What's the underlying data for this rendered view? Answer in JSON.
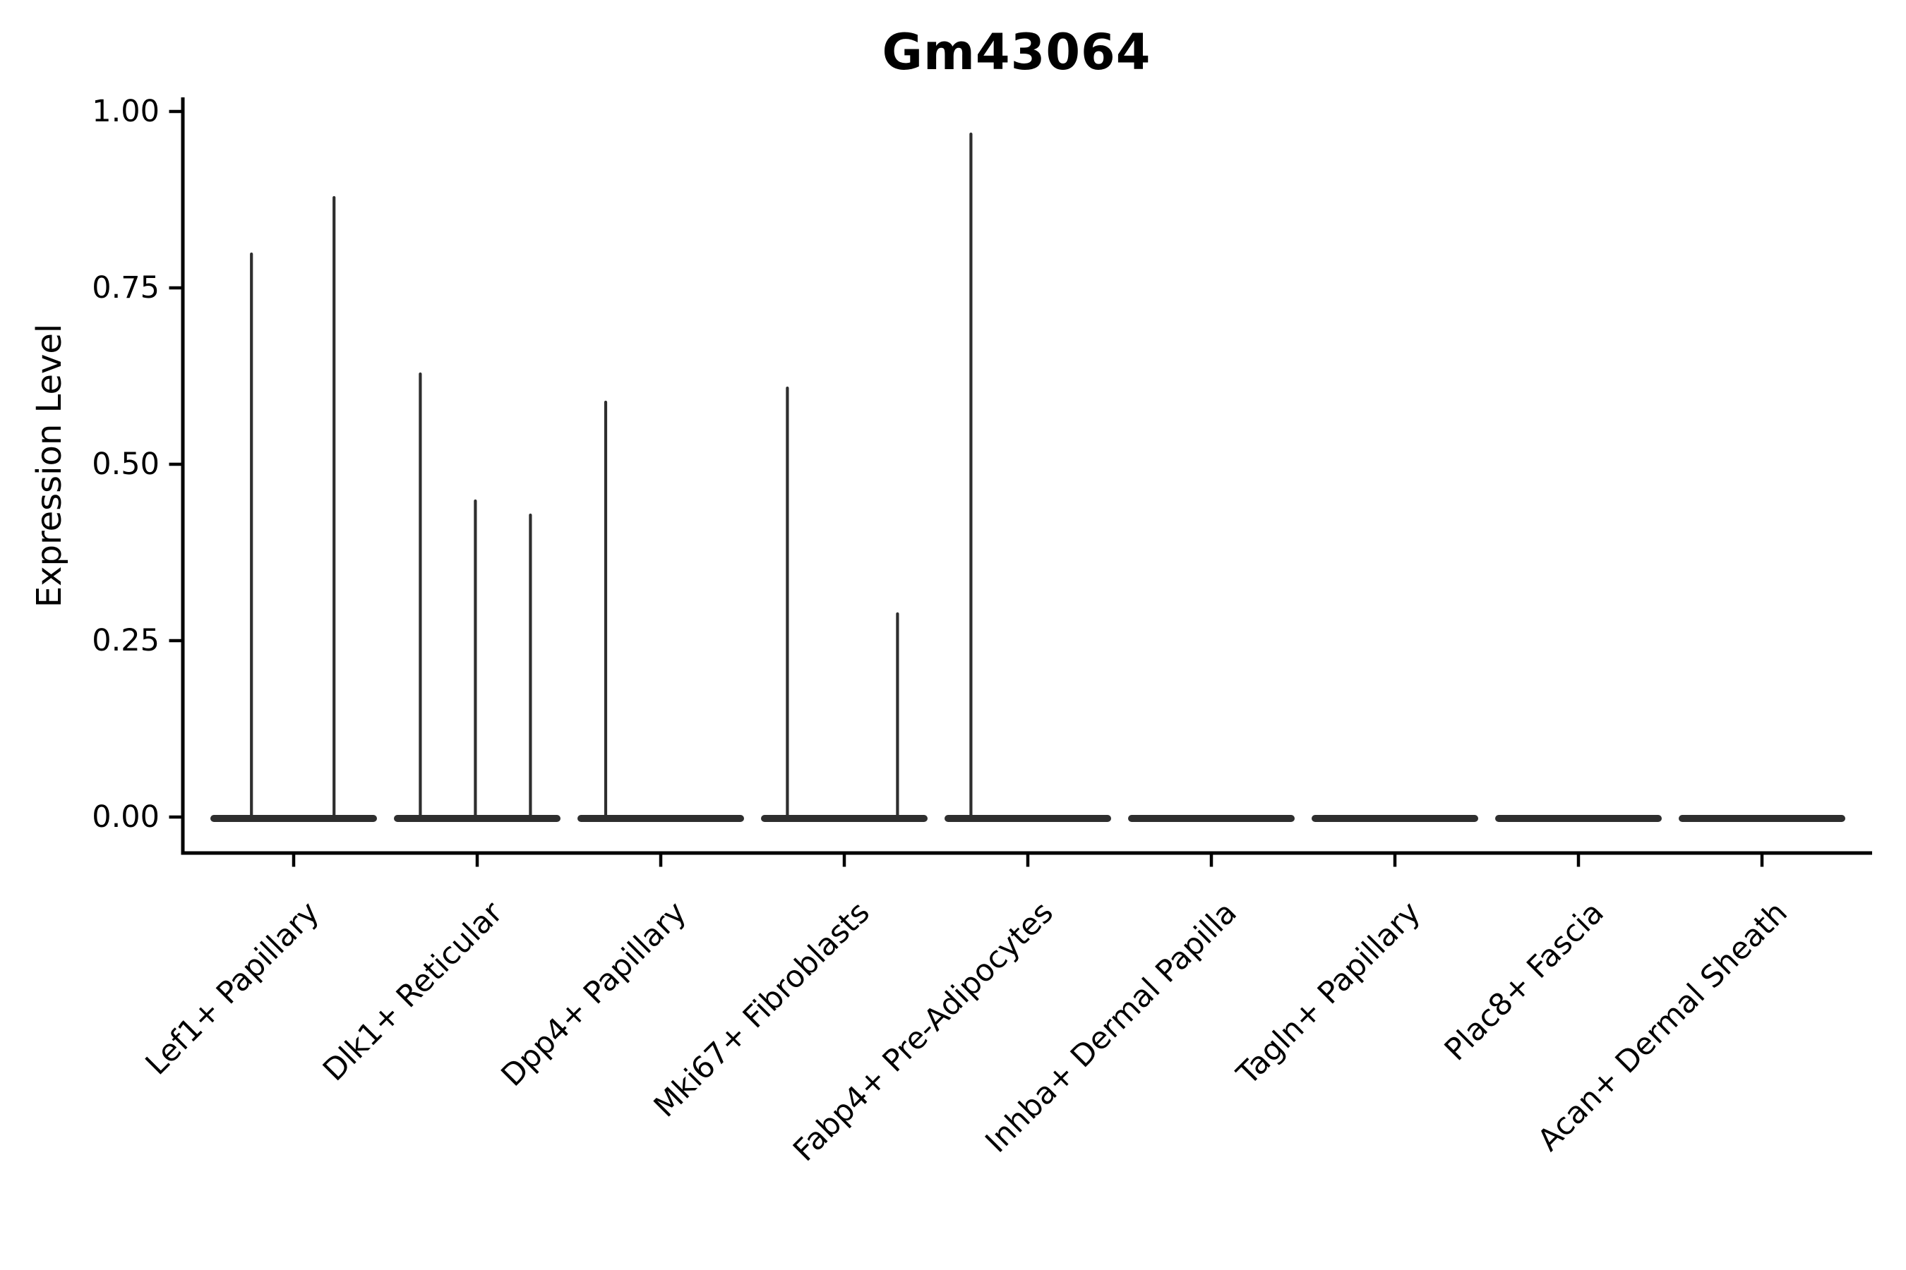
{
  "title": "Gm43064",
  "y_axis": {
    "label": "Expression Level",
    "tick_labels": [
      "0.00",
      "0.25",
      "0.50",
      "0.75",
      "1.00"
    ]
  },
  "x_axis": {
    "categories": [
      "Lef1+ Papillary",
      "Dlk1+ Reticular",
      "Dpp4+ Papillary",
      "Mki67+ Fibroblasts",
      "Fabp4+ Pre-Adipocytes",
      "Inhba+ Dermal Papilla",
      "Tagln+ Papillary",
      "Plac8+ Fascia",
      "Acan+ Dermal Sheath"
    ]
  },
  "chart_data": {
    "type": "violin",
    "title": "Gm43064",
    "xlabel": "",
    "ylabel": "Expression Level",
    "ylim": [
      -0.05,
      1.02
    ],
    "yticks": [
      0.0,
      0.25,
      0.5,
      0.75,
      1.0
    ],
    "ytick_labels": [
      "0.00",
      "0.25",
      "0.50",
      "0.75",
      "1.00"
    ],
    "grid": false,
    "legend": false,
    "line_color": "#2e2e2e",
    "axis_color": "#000000",
    "categories": [
      "Lef1+ Papillary",
      "Dlk1+ Reticular",
      "Dpp4+ Papillary",
      "Mki67+ Fibroblasts",
      "Fabp4+ Pre-Adipocytes",
      "Inhba+ Dermal Papilla",
      "Tagln+ Papillary",
      "Plac8+ Fascia",
      "Acan+ Dermal Sheath"
    ],
    "violins": [
      {
        "category": "Lef1+ Papillary",
        "baseline_value": 0.0,
        "max_value": 0.88,
        "spikes": [
          {
            "offset_frac": -0.23,
            "value": 0.8
          },
          {
            "offset_frac": 0.22,
            "value": 0.88
          }
        ]
      },
      {
        "category": "Dlk1+ Reticular",
        "baseline_value": 0.0,
        "max_value": 0.63,
        "spikes": [
          {
            "offset_frac": -0.31,
            "value": 0.63
          },
          {
            "offset_frac": -0.01,
            "value": 0.45
          },
          {
            "offset_frac": 0.29,
            "value": 0.43
          }
        ]
      },
      {
        "category": "Dpp4+ Papillary",
        "baseline_value": 0.0,
        "max_value": 0.59,
        "spikes": [
          {
            "offset_frac": -0.3,
            "value": 0.59
          }
        ]
      },
      {
        "category": "Mki67+ Fibroblasts",
        "baseline_value": 0.0,
        "max_value": 0.61,
        "spikes": [
          {
            "offset_frac": -0.31,
            "value": 0.61
          },
          {
            "offset_frac": 0.29,
            "value": 0.29
          }
        ]
      },
      {
        "category": "Fabp4+ Pre-Adipocytes",
        "baseline_value": 0.0,
        "max_value": 0.97,
        "spikes": [
          {
            "offset_frac": -0.31,
            "value": 0.97
          }
        ]
      },
      {
        "category": "Inhba+ Dermal Papilla",
        "baseline_value": 0.0,
        "max_value": 0.0,
        "spikes": []
      },
      {
        "category": "Tagln+ Papillary",
        "baseline_value": 0.0,
        "max_value": 0.0,
        "spikes": []
      },
      {
        "category": "Plac8+ Fascia",
        "baseline_value": 0.0,
        "max_value": 0.0,
        "spikes": []
      },
      {
        "category": "Acan+ Dermal Sheath",
        "baseline_value": 0.0,
        "max_value": 0.0,
        "spikes": []
      }
    ]
  }
}
